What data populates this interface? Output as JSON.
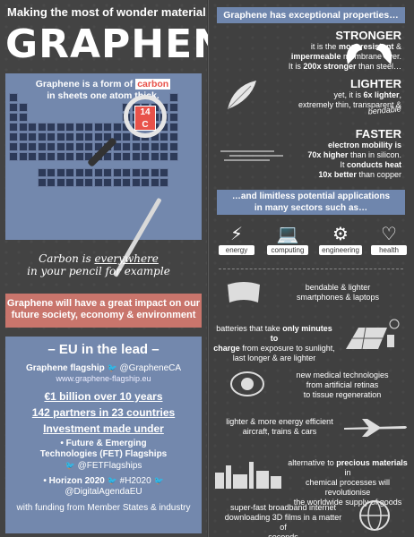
{
  "header": {
    "tagline": "Making the most of wonder material",
    "title": "GRAPHENE"
  },
  "periodic": {
    "caption_pre": "Graphene is a form of",
    "caption_highlight": "carbon",
    "caption_post": "in sheets one atom thick.",
    "carbon_number": "14",
    "carbon_symbol": "C",
    "everywhere_pre": "Carbon is",
    "everywhere_word": "everywhere",
    "everywhere_post": "in your pencil for example"
  },
  "impact": {
    "text": "Graphene will have a great impact on our future society, economy & environment"
  },
  "eu": {
    "title": "– EU in the lead –",
    "flagship": "Graphene flagship",
    "flagship_handle": "@GrapheneCA",
    "flagship_url": "www.graphene-flagship.eu",
    "funding": "€1 billion over 10 years",
    "partners": "142 partners in 23 countries",
    "investment": "Investment made under",
    "fet_line1": "• Future & Emerging",
    "fet_line2": "Technologies (FET) Flagships",
    "fet_handle": "@FETFlagships",
    "h2020": "• Horizon 2020",
    "h2020_tag": "#H2020",
    "h2020_handle": "@DigitalAgendaEU",
    "footer": "with funding from Member States & industry"
  },
  "properties": {
    "title": "Graphene has exceptional properties…",
    "stronger": {
      "heading": "STRONGER",
      "line1_pre": "it is the",
      "line1_bold": "most resistant",
      "line1_post": "&",
      "line2_bold": "impermeable",
      "line2_post": "membrane ever.",
      "line3_pre": "It is",
      "line3_bold": "200x stronger",
      "line3_post": "than steel…"
    },
    "lighter": {
      "heading": "LIGHTER",
      "line1_pre": "yet, it is",
      "line1_bold": "6x lighter",
      "line1_post": ",",
      "line2": "extremely thin, transparent &",
      "line3": "bendable"
    },
    "faster": {
      "heading": "FASTER",
      "line1": "electron mobility is",
      "line2_bold": "70x higher",
      "line2_post": "than in silicon.",
      "line3_pre": "It",
      "line3_bold": "conducts heat",
      "line4_bold": "10x better",
      "line4_post": "than copper"
    }
  },
  "applications": {
    "title_line1": "…and limitless potential applications",
    "title_line2": "in many sectors such as…",
    "sectors": [
      {
        "label": "energy",
        "icon": "plug-icon"
      },
      {
        "label": "computing",
        "icon": "laptop-icon"
      },
      {
        "label": "engineering",
        "icon": "gears-icon"
      },
      {
        "label": "health",
        "icon": "heart-icon"
      }
    ],
    "items": [
      {
        "line1": "bendable & lighter",
        "line2": "smartphones & laptops",
        "icon": "flexible-screen-icon"
      },
      {
        "line1_pre": "batteries that take",
        "line1_bold": "only minutes to",
        "line2_bold": "charge",
        "line2_post": "from exposure to sunlight,",
        "line3": "last longer & are lighter",
        "icon": "solar-panel-icon"
      },
      {
        "line1": "new medical technologies",
        "line2": "from artificial retinas",
        "line3": "to tissue regeneration",
        "icon": "eye-icon"
      },
      {
        "line1": "lighter & more energy efficient",
        "line2": "aircraft, trains & cars",
        "icon": "plane-icon"
      },
      {
        "line1_pre": "alternative to",
        "line1_bold": "precious materials",
        "line1_post": "in",
        "line2": "chemical processes will revolutionise",
        "line3": "the worldwide supply of goods",
        "icon": "factory-icon"
      },
      {
        "line1": "super-fast broadband internet",
        "line2": "downloading 3D films in a matter of",
        "line3": "seconds",
        "icon": "globe-icon"
      }
    ]
  }
}
